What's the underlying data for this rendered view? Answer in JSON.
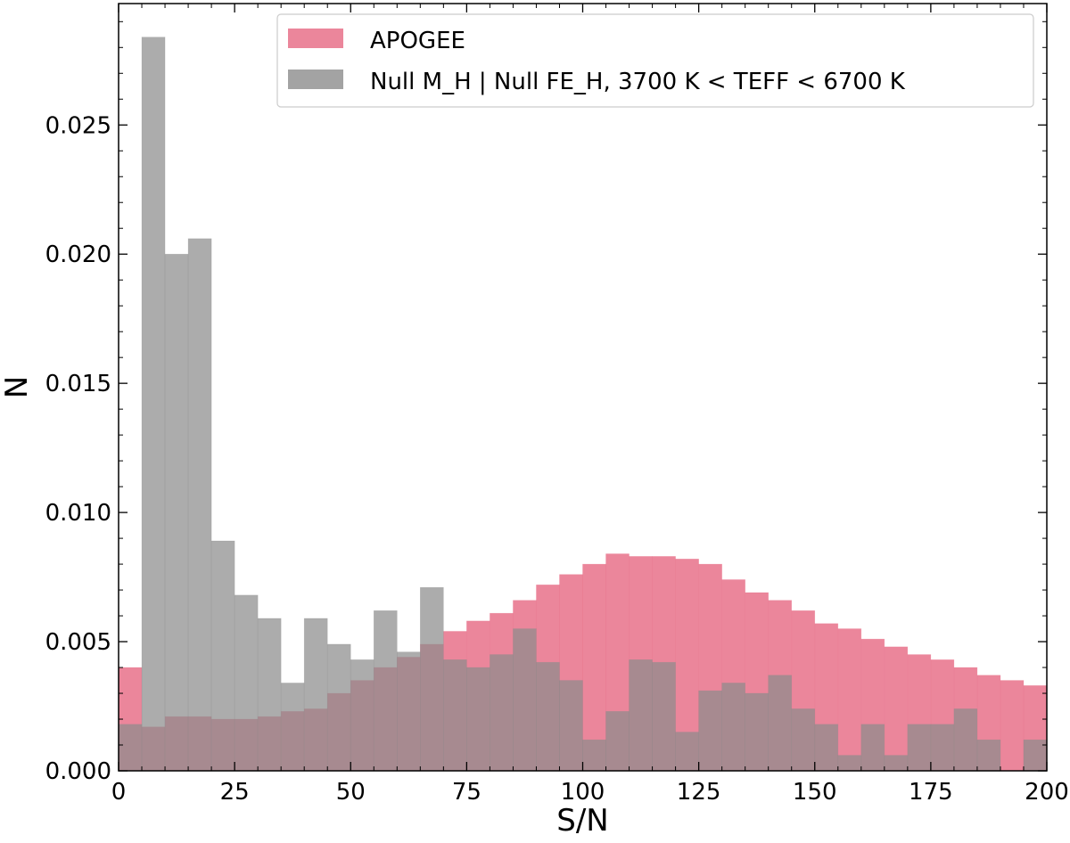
{
  "chart_data": {
    "type": "bar",
    "xlabel": "S/N",
    "ylabel": "N",
    "xlim": [
      0,
      200
    ],
    "ylim": [
      0,
      0.0297
    ],
    "grid": false,
    "legend_position": "top-right",
    "bin_width": 5,
    "x_ticks": [
      "0",
      "25",
      "50",
      "75",
      "100",
      "125",
      "150",
      "175",
      "200"
    ],
    "y_ticks": [
      "0.000",
      "0.005",
      "0.010",
      "0.015",
      "0.020",
      "0.025"
    ],
    "bin_starts": [
      0,
      5,
      10,
      15,
      20,
      25,
      30,
      35,
      40,
      45,
      50,
      55,
      60,
      65,
      70,
      75,
      80,
      85,
      90,
      95,
      100,
      105,
      110,
      115,
      120,
      125,
      130,
      135,
      140,
      145,
      150,
      155,
      160,
      165,
      170,
      175,
      180,
      185,
      190,
      195
    ],
    "series": [
      {
        "name": "APOGEE",
        "color": "#e8718a",
        "values": [
          0.004,
          0.0017,
          0.0021,
          0.0021,
          0.002,
          0.002,
          0.0021,
          0.0023,
          0.0024,
          0.003,
          0.0035,
          0.004,
          0.0044,
          0.0049,
          0.0054,
          0.0058,
          0.0061,
          0.0066,
          0.0072,
          0.0076,
          0.008,
          0.0084,
          0.0083,
          0.0083,
          0.0082,
          0.008,
          0.0074,
          0.0069,
          0.0066,
          0.0062,
          0.0057,
          0.0055,
          0.0051,
          0.0048,
          0.0045,
          0.0043,
          0.004,
          0.0037,
          0.0035,
          0.0033
        ]
      },
      {
        "name": "Null M_H | Null FE_H, 3700 K < TEFF < 6700 K",
        "color": "#8c8c8c",
        "values": [
          0.0018,
          0.0284,
          0.02,
          0.0206,
          0.0089,
          0.0068,
          0.0059,
          0.0034,
          0.0059,
          0.0049,
          0.0043,
          0.0062,
          0.0046,
          0.0071,
          0.0043,
          0.004,
          0.0045,
          0.0055,
          0.0042,
          0.0035,
          0.0012,
          0.0023,
          0.0043,
          0.0042,
          0.0015,
          0.0031,
          0.0034,
          0.003,
          0.0037,
          0.0024,
          0.0018,
          0.0006,
          0.0018,
          0.0006,
          0.0018,
          0.0018,
          0.0024,
          0.0012,
          0.0,
          0.0012
        ]
      }
    ]
  }
}
